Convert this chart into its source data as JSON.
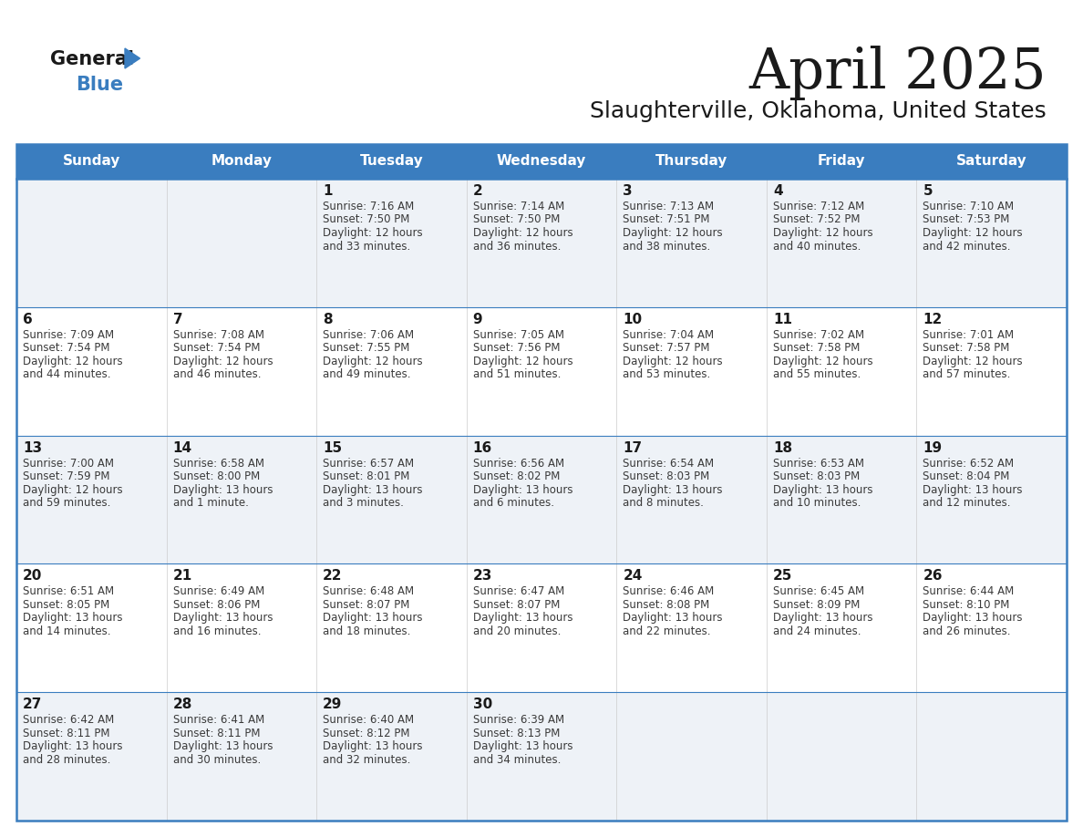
{
  "title": "April 2025",
  "subtitle": "Slaughterville, Oklahoma, United States",
  "header_color": "#3a7dbf",
  "row_bg_odd": "#eef2f7",
  "row_bg_even": "#ffffff",
  "day_names": [
    "Sunday",
    "Monday",
    "Tuesday",
    "Wednesday",
    "Thursday",
    "Friday",
    "Saturday"
  ],
  "days": [
    {
      "day": 1,
      "col": 2,
      "row": 0,
      "sunrise": "7:16 AM",
      "sunset": "7:50 PM",
      "daylight_h": "12 hours",
      "daylight_m": "and 33 minutes."
    },
    {
      "day": 2,
      "col": 3,
      "row": 0,
      "sunrise": "7:14 AM",
      "sunset": "7:50 PM",
      "daylight_h": "12 hours",
      "daylight_m": "and 36 minutes."
    },
    {
      "day": 3,
      "col": 4,
      "row": 0,
      "sunrise": "7:13 AM",
      "sunset": "7:51 PM",
      "daylight_h": "12 hours",
      "daylight_m": "and 38 minutes."
    },
    {
      "day": 4,
      "col": 5,
      "row": 0,
      "sunrise": "7:12 AM",
      "sunset": "7:52 PM",
      "daylight_h": "12 hours",
      "daylight_m": "and 40 minutes."
    },
    {
      "day": 5,
      "col": 6,
      "row": 0,
      "sunrise": "7:10 AM",
      "sunset": "7:53 PM",
      "daylight_h": "12 hours",
      "daylight_m": "and 42 minutes."
    },
    {
      "day": 6,
      "col": 0,
      "row": 1,
      "sunrise": "7:09 AM",
      "sunset": "7:54 PM",
      "daylight_h": "12 hours",
      "daylight_m": "and 44 minutes."
    },
    {
      "day": 7,
      "col": 1,
      "row": 1,
      "sunrise": "7:08 AM",
      "sunset": "7:54 PM",
      "daylight_h": "12 hours",
      "daylight_m": "and 46 minutes."
    },
    {
      "day": 8,
      "col": 2,
      "row": 1,
      "sunrise": "7:06 AM",
      "sunset": "7:55 PM",
      "daylight_h": "12 hours",
      "daylight_m": "and 49 minutes."
    },
    {
      "day": 9,
      "col": 3,
      "row": 1,
      "sunrise": "7:05 AM",
      "sunset": "7:56 PM",
      "daylight_h": "12 hours",
      "daylight_m": "and 51 minutes."
    },
    {
      "day": 10,
      "col": 4,
      "row": 1,
      "sunrise": "7:04 AM",
      "sunset": "7:57 PM",
      "daylight_h": "12 hours",
      "daylight_m": "and 53 minutes."
    },
    {
      "day": 11,
      "col": 5,
      "row": 1,
      "sunrise": "7:02 AM",
      "sunset": "7:58 PM",
      "daylight_h": "12 hours",
      "daylight_m": "and 55 minutes."
    },
    {
      "day": 12,
      "col": 6,
      "row": 1,
      "sunrise": "7:01 AM",
      "sunset": "7:58 PM",
      "daylight_h": "12 hours",
      "daylight_m": "and 57 minutes."
    },
    {
      "day": 13,
      "col": 0,
      "row": 2,
      "sunrise": "7:00 AM",
      "sunset": "7:59 PM",
      "daylight_h": "12 hours",
      "daylight_m": "and 59 minutes."
    },
    {
      "day": 14,
      "col": 1,
      "row": 2,
      "sunrise": "6:58 AM",
      "sunset": "8:00 PM",
      "daylight_h": "13 hours",
      "daylight_m": "and 1 minute."
    },
    {
      "day": 15,
      "col": 2,
      "row": 2,
      "sunrise": "6:57 AM",
      "sunset": "8:01 PM",
      "daylight_h": "13 hours",
      "daylight_m": "and 3 minutes."
    },
    {
      "day": 16,
      "col": 3,
      "row": 2,
      "sunrise": "6:56 AM",
      "sunset": "8:02 PM",
      "daylight_h": "13 hours",
      "daylight_m": "and 6 minutes."
    },
    {
      "day": 17,
      "col": 4,
      "row": 2,
      "sunrise": "6:54 AM",
      "sunset": "8:03 PM",
      "daylight_h": "13 hours",
      "daylight_m": "and 8 minutes."
    },
    {
      "day": 18,
      "col": 5,
      "row": 2,
      "sunrise": "6:53 AM",
      "sunset": "8:03 PM",
      "daylight_h": "13 hours",
      "daylight_m": "and 10 minutes."
    },
    {
      "day": 19,
      "col": 6,
      "row": 2,
      "sunrise": "6:52 AM",
      "sunset": "8:04 PM",
      "daylight_h": "13 hours",
      "daylight_m": "and 12 minutes."
    },
    {
      "day": 20,
      "col": 0,
      "row": 3,
      "sunrise": "6:51 AM",
      "sunset": "8:05 PM",
      "daylight_h": "13 hours",
      "daylight_m": "and 14 minutes."
    },
    {
      "day": 21,
      "col": 1,
      "row": 3,
      "sunrise": "6:49 AM",
      "sunset": "8:06 PM",
      "daylight_h": "13 hours",
      "daylight_m": "and 16 minutes."
    },
    {
      "day": 22,
      "col": 2,
      "row": 3,
      "sunrise": "6:48 AM",
      "sunset": "8:07 PM",
      "daylight_h": "13 hours",
      "daylight_m": "and 18 minutes."
    },
    {
      "day": 23,
      "col": 3,
      "row": 3,
      "sunrise": "6:47 AM",
      "sunset": "8:07 PM",
      "daylight_h": "13 hours",
      "daylight_m": "and 20 minutes."
    },
    {
      "day": 24,
      "col": 4,
      "row": 3,
      "sunrise": "6:46 AM",
      "sunset": "8:08 PM",
      "daylight_h": "13 hours",
      "daylight_m": "and 22 minutes."
    },
    {
      "day": 25,
      "col": 5,
      "row": 3,
      "sunrise": "6:45 AM",
      "sunset": "8:09 PM",
      "daylight_h": "13 hours",
      "daylight_m": "and 24 minutes."
    },
    {
      "day": 26,
      "col": 6,
      "row": 3,
      "sunrise": "6:44 AM",
      "sunset": "8:10 PM",
      "daylight_h": "13 hours",
      "daylight_m": "and 26 minutes."
    },
    {
      "day": 27,
      "col": 0,
      "row": 4,
      "sunrise": "6:42 AM",
      "sunset": "8:11 PM",
      "daylight_h": "13 hours",
      "daylight_m": "and 28 minutes."
    },
    {
      "day": 28,
      "col": 1,
      "row": 4,
      "sunrise": "6:41 AM",
      "sunset": "8:11 PM",
      "daylight_h": "13 hours",
      "daylight_m": "and 30 minutes."
    },
    {
      "day": 29,
      "col": 2,
      "row": 4,
      "sunrise": "6:40 AM",
      "sunset": "8:12 PM",
      "daylight_h": "13 hours",
      "daylight_m": "and 32 minutes."
    },
    {
      "day": 30,
      "col": 3,
      "row": 4,
      "sunrise": "6:39 AM",
      "sunset": "8:13 PM",
      "daylight_h": "13 hours",
      "daylight_m": "and 34 minutes."
    }
  ],
  "text_color_dark": "#1a1a1a",
  "text_color_cell": "#3a3a3a",
  "border_color": "#3a7dbf",
  "fig_width": 11.88,
  "fig_height": 9.18,
  "dpi": 100
}
